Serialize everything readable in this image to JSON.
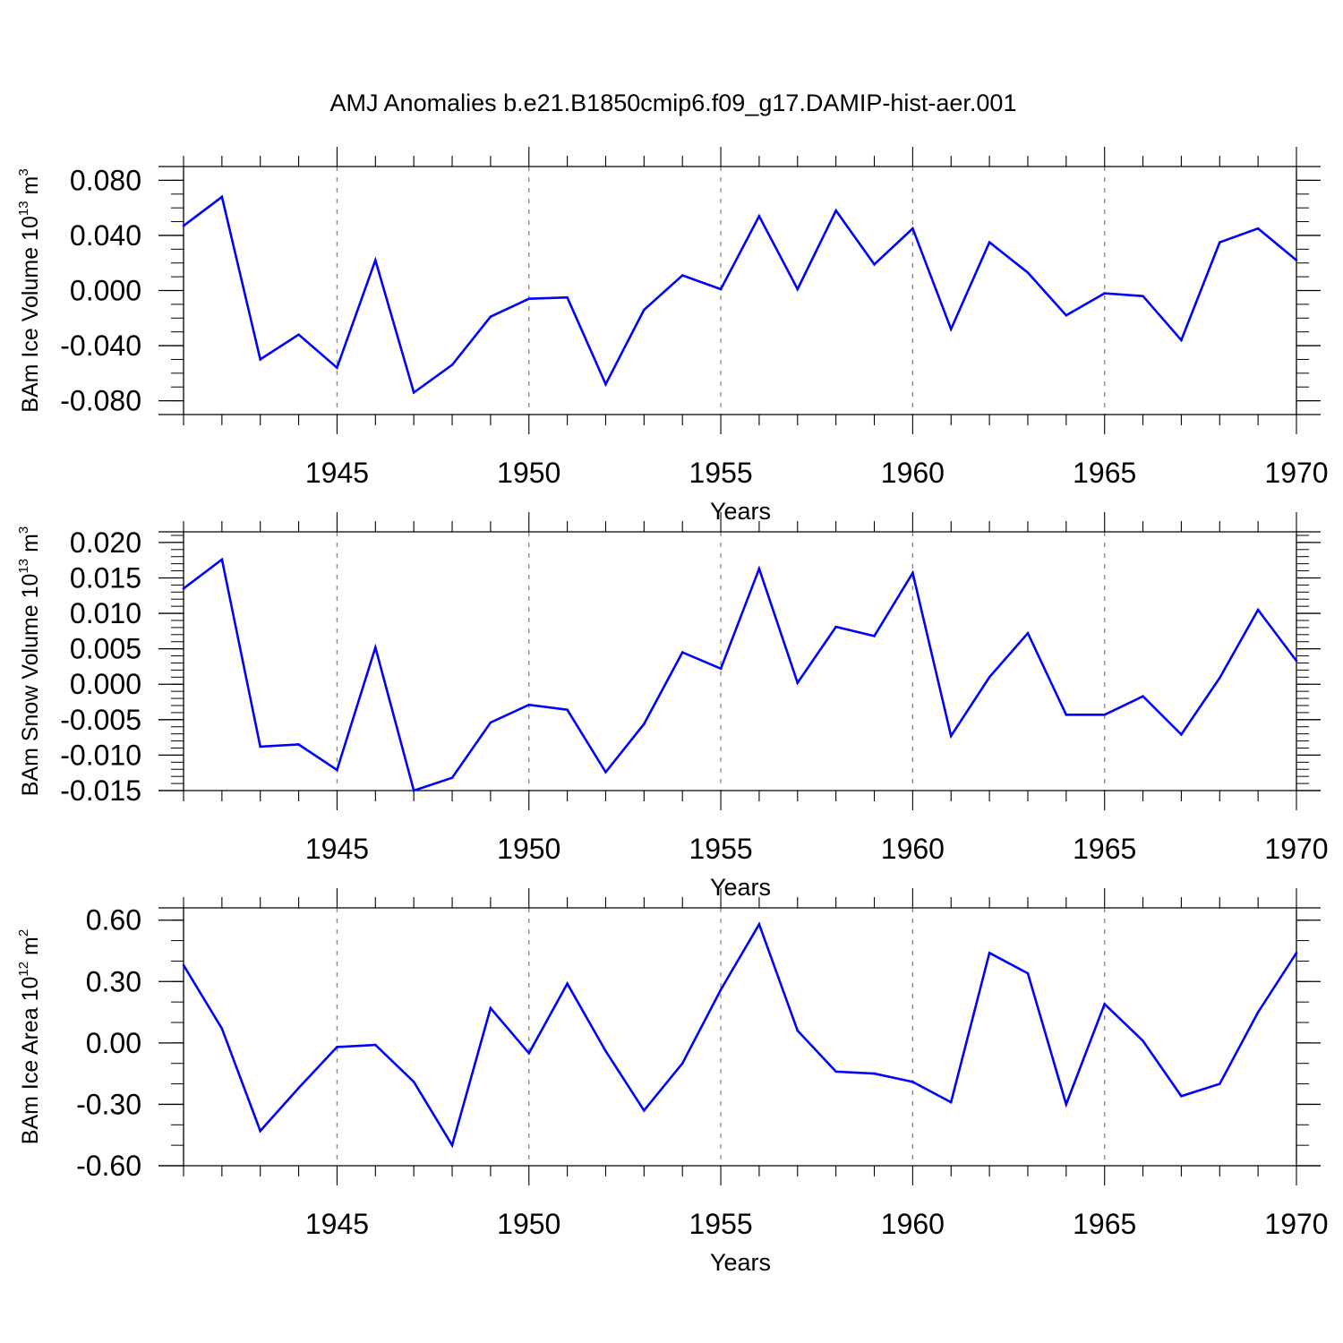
{
  "title": "AMJ Anomalies b.e21.B1850cmip6.f09_g17.DAMIP-hist-aer.001",
  "line_color": "#0000ff",
  "chart_data": [
    {
      "type": "line",
      "ylabel": "BAm Ice Volume 10",
      "ylabel_exp": "13",
      "ylabel_unit": " m",
      "ylabel_unit_exp": "3",
      "xlabel": "Years",
      "xlim": [
        1941,
        1970
      ],
      "ylim": [
        -0.09,
        0.09
      ],
      "xticks": [
        1945,
        1950,
        1955,
        1960,
        1965,
        1970
      ],
      "yticks": [
        0.08,
        0.04,
        0.0,
        -0.04,
        -0.08
      ],
      "ytick_labels": [
        "0.080",
        "0.040",
        "0.000",
        "-0.040",
        "-0.080"
      ],
      "yminor_step": 0.01,
      "x": [
        1941,
        1942,
        1943,
        1944,
        1945,
        1946,
        1947,
        1948,
        1949,
        1950,
        1951,
        1952,
        1953,
        1954,
        1955,
        1956,
        1957,
        1958,
        1959,
        1960,
        1961,
        1962,
        1963,
        1964,
        1965,
        1966,
        1967,
        1968,
        1969,
        1970
      ],
      "y": [
        0.047,
        0.068,
        -0.05,
        -0.032,
        -0.056,
        0.022,
        -0.074,
        -0.054,
        -0.019,
        -0.006,
        -0.005,
        -0.068,
        -0.014,
        0.011,
        0.001,
        0.054,
        0.001,
        0.058,
        0.019,
        0.045,
        -0.028,
        0.035,
        0.013,
        -0.018,
        -0.002,
        -0.004,
        -0.036,
        0.035,
        0.045,
        0.022
      ]
    },
    {
      "type": "line",
      "ylabel": "BAm Snow Volume 10",
      "ylabel_exp": "13",
      "ylabel_unit": " m",
      "ylabel_unit_exp": "3",
      "xlabel": "Years",
      "xlim": [
        1941,
        1970
      ],
      "ylim": [
        -0.015,
        0.0215
      ],
      "xticks": [
        1945,
        1950,
        1955,
        1960,
        1965,
        1970
      ],
      "yticks": [
        0.02,
        0.015,
        0.01,
        0.005,
        0.0,
        -0.005,
        -0.01,
        -0.015
      ],
      "ytick_labels": [
        "0.020",
        "0.015",
        "0.010",
        "0.005",
        "0.000",
        "-0.005",
        "-0.010",
        "-0.015"
      ],
      "yminor_step": 0.001,
      "x": [
        1941,
        1942,
        1943,
        1944,
        1945,
        1946,
        1947,
        1948,
        1949,
        1950,
        1951,
        1952,
        1953,
        1954,
        1955,
        1956,
        1957,
        1958,
        1959,
        1960,
        1961,
        1962,
        1963,
        1964,
        1965,
        1966,
        1967,
        1968,
        1969,
        1970
      ],
      "y": [
        0.0135,
        0.0176,
        -0.0088,
        -0.0085,
        -0.0121,
        0.0052,
        -0.015,
        -0.0132,
        -0.0054,
        -0.0029,
        -0.0036,
        -0.0124,
        -0.0056,
        0.0045,
        0.0022,
        0.0163,
        0.0002,
        0.0081,
        0.0068,
        0.0157,
        -0.0073,
        0.001,
        0.0072,
        -0.0043,
        -0.0043,
        -0.0017,
        -0.0071,
        0.0009,
        0.0105,
        0.0033
      ]
    },
    {
      "type": "line",
      "ylabel": "BAm Ice Area 10",
      "ylabel_exp": "12",
      "ylabel_unit": " m",
      "ylabel_unit_exp": "2",
      "xlabel": "Years",
      "xlim": [
        1941,
        1970
      ],
      "ylim": [
        -0.6,
        0.66
      ],
      "xticks": [
        1945,
        1950,
        1955,
        1960,
        1965,
        1970
      ],
      "yticks": [
        0.6,
        0.3,
        0.0,
        -0.3,
        -0.6
      ],
      "ytick_labels": [
        "0.60",
        "0.30",
        "0.00",
        "-0.30",
        "-0.60"
      ],
      "yminor_step": 0.1,
      "x": [
        1941,
        1942,
        1943,
        1944,
        1945,
        1946,
        1947,
        1948,
        1949,
        1950,
        1951,
        1952,
        1953,
        1954,
        1955,
        1956,
        1957,
        1958,
        1959,
        1960,
        1961,
        1962,
        1963,
        1964,
        1965,
        1966,
        1967,
        1968,
        1969,
        1970
      ],
      "y": [
        0.38,
        0.07,
        -0.43,
        -0.22,
        -0.02,
        -0.01,
        -0.19,
        -0.5,
        0.17,
        -0.05,
        0.29,
        -0.04,
        -0.33,
        -0.1,
        0.26,
        0.58,
        0.06,
        -0.14,
        -0.15,
        -0.19,
        -0.29,
        0.44,
        0.34,
        -0.3,
        0.19,
        0.01,
        -0.26,
        -0.2,
        0.15,
        0.44
      ]
    }
  ]
}
